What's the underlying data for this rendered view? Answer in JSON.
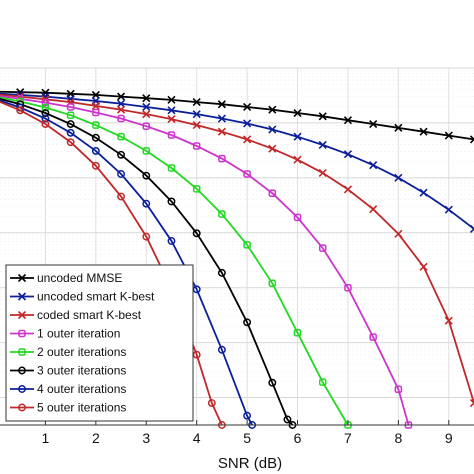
{
  "chart_data": {
    "type": "line",
    "title": "",
    "xlabel": "SNR (dB)",
    "ylabel": "",
    "xlim": [
      0,
      9.5
    ],
    "ylim": [
      -6.5,
      0
    ],
    "y_scale": "log10",
    "x_ticks": [
      1,
      2,
      3,
      4,
      5,
      6,
      7,
      8,
      9
    ],
    "grid": true,
    "legend_position": "bottom-left",
    "series": [
      {
        "name": "uncoded MMSE",
        "color": "#000000",
        "marker": "x",
        "x": [
          0,
          0.5,
          1,
          1.5,
          2,
          2.5,
          3,
          3.5,
          4,
          4.5,
          5,
          5.5,
          6,
          6.5,
          7,
          7.5,
          8,
          8.5,
          9,
          9.5
        ],
        "y": [
          -0.43,
          -0.44,
          -0.45,
          -0.47,
          -0.49,
          -0.52,
          -0.55,
          -0.58,
          -0.62,
          -0.66,
          -0.71,
          -0.76,
          -0.82,
          -0.88,
          -0.95,
          -1.02,
          -1.09,
          -1.16,
          -1.23,
          -1.3
        ]
      },
      {
        "name": "uncoded smart K-best",
        "color": "#0b1f9a",
        "marker": "x",
        "x": [
          0,
          0.5,
          1,
          1.5,
          2,
          2.5,
          3,
          3.5,
          4,
          4.5,
          5,
          5.5,
          6,
          6.5,
          7,
          7.5,
          8,
          8.5,
          9,
          9.5
        ],
        "y": [
          -0.46,
          -0.49,
          -0.52,
          -0.56,
          -0.6,
          -0.65,
          -0.71,
          -0.77,
          -0.84,
          -0.92,
          -1.01,
          -1.12,
          -1.25,
          -1.4,
          -1.57,
          -1.77,
          -2.0,
          -2.27,
          -2.58,
          -2.93
        ]
      },
      {
        "name": "coded smart K-best",
        "color": "#c0282a",
        "marker": "x",
        "x": [
          0,
          0.5,
          1,
          1.5,
          2,
          2.5,
          3,
          3.5,
          4,
          4.5,
          5,
          5.5,
          6,
          6.5,
          7,
          7.5,
          8,
          8.5,
          9,
          9.5
        ],
        "y": [
          -0.48,
          -0.52,
          -0.57,
          -0.62,
          -0.69,
          -0.76,
          -0.84,
          -0.93,
          -1.04,
          -1.16,
          -1.3,
          -1.47,
          -1.67,
          -1.91,
          -2.21,
          -2.57,
          -3.02,
          -3.62,
          -4.6,
          -6.1
        ]
      },
      {
        "name": "1 outer iteration",
        "color": "#cc34cc",
        "marker": "s",
        "x": [
          0,
          0.5,
          1,
          1.5,
          2,
          2.5,
          3,
          3.5,
          4,
          4.5,
          5,
          5.5,
          6,
          6.5,
          7,
          7.5,
          8,
          8.2
        ],
        "y": [
          -0.5,
          -0.56,
          -0.63,
          -0.71,
          -0.81,
          -0.92,
          -1.06,
          -1.22,
          -1.42,
          -1.65,
          -1.93,
          -2.28,
          -2.72,
          -3.28,
          -4.0,
          -4.9,
          -5.85,
          -6.5
        ]
      },
      {
        "name": "2 outer iterations",
        "color": "#22d822",
        "marker": "s",
        "x": [
          0,
          0.5,
          1,
          1.5,
          2,
          2.5,
          3,
          3.5,
          4,
          4.5,
          5,
          5.5,
          6,
          6.5,
          7
        ],
        "y": [
          -0.52,
          -0.61,
          -0.72,
          -0.86,
          -1.04,
          -1.25,
          -1.51,
          -1.82,
          -2.2,
          -2.66,
          -3.22,
          -3.92,
          -4.82,
          -5.72,
          -6.5
        ]
      },
      {
        "name": "3 outer iterations",
        "color": "#000000",
        "marker": "o",
        "x": [
          0,
          0.5,
          1,
          1.5,
          2,
          2.5,
          3,
          3.5,
          4,
          4.5,
          5,
          5.5,
          5.8,
          5.9
        ],
        "y": [
          -0.54,
          -0.66,
          -0.82,
          -1.02,
          -1.27,
          -1.58,
          -1.96,
          -2.43,
          -3.01,
          -3.73,
          -4.63,
          -5.73,
          -6.4,
          -6.5
        ]
      },
      {
        "name": "4 outer iterations",
        "color": "#0b1f9a",
        "marker": "o",
        "x": [
          0,
          0.5,
          1,
          1.5,
          2,
          2.5,
          3,
          3.5,
          4,
          4.5,
          5,
          5.1
        ],
        "y": [
          -0.56,
          -0.72,
          -0.92,
          -1.18,
          -1.51,
          -1.93,
          -2.47,
          -3.15,
          -4.03,
          -5.13,
          -6.33,
          -6.5
        ]
      },
      {
        "name": "5 outer iterations",
        "color": "#c0282a",
        "marker": "o",
        "x": [
          0,
          0.5,
          1,
          1.5,
          2,
          2.5,
          3,
          3.5,
          4,
          4.3,
          4.5
        ],
        "y": [
          -0.58,
          -0.77,
          -1.02,
          -1.35,
          -1.78,
          -2.34,
          -3.07,
          -4.02,
          -5.22,
          -6.1,
          -6.5
        ]
      }
    ]
  }
}
